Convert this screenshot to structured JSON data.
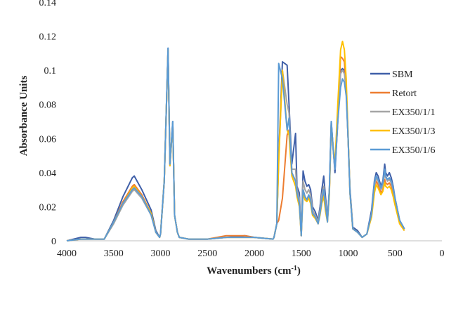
{
  "chart_data": {
    "type": "line",
    "title": "",
    "xlabel": "Wavenumbers (cm",
    "xlabel_sup": "-1",
    "xlabel_close": ")",
    "ylabel": "Absorbance Units",
    "xlim": [
      4000,
      0
    ],
    "ylim": [
      0,
      0.14
    ],
    "x_ticks": [
      4000,
      3500,
      3000,
      2500,
      2000,
      1500,
      1000,
      500,
      0
    ],
    "x_tick_labels": [
      "4000",
      "3500",
      "3000",
      "2500",
      "2000",
      "1500",
      "1000",
      "500",
      "0"
    ],
    "y_ticks": [
      0,
      0.02,
      0.04,
      0.06,
      0.08,
      0.1,
      0.12,
      0.14
    ],
    "y_tick_labels": [
      "0",
      "0.02",
      "0.04",
      "0.06",
      "0.08",
      "0.1",
      "0.12",
      "0.14"
    ],
    "grid": false,
    "legend_position": "right",
    "series": [
      {
        "name": "SBM",
        "color": "#3f5fa8",
        "x": [
          4000,
          3850,
          3800,
          3700,
          3600,
          3500,
          3400,
          3300,
          3280,
          3200,
          3100,
          3050,
          3010,
          3000,
          2960,
          2920,
          2900,
          2870,
          2850,
          2820,
          2800,
          2700,
          2500,
          2300,
          2100,
          2000,
          1800,
          1790,
          1760,
          1740,
          1700,
          1650,
          1630,
          1600,
          1560,
          1545,
          1520,
          1500,
          1480,
          1460,
          1440,
          1420,
          1400,
          1380,
          1350,
          1320,
          1300,
          1280,
          1260,
          1240,
          1220,
          1200,
          1180,
          1160,
          1140,
          1110,
          1080,
          1060,
          1040,
          1020,
          1000,
          980,
          950,
          900,
          850,
          800,
          750,
          720,
          700,
          680,
          650,
          630,
          610,
          600,
          580,
          560,
          540,
          520,
          500,
          450,
          400
        ],
        "y": [
          0,
          0.002,
          0.002,
          0.001,
          0.001,
          0.012,
          0.026,
          0.037,
          0.038,
          0.03,
          0.018,
          0.006,
          0.002,
          0.004,
          0.035,
          0.113,
          0.045,
          0.07,
          0.015,
          0.005,
          0.002,
          0.001,
          0.001,
          0.002,
          0.003,
          0.002,
          0.001,
          0.002,
          0.01,
          0.05,
          0.105,
          0.103,
          0.08,
          0.045,
          0.063,
          0.032,
          0.028,
          0.003,
          0.041,
          0.035,
          0.032,
          0.033,
          0.03,
          0.02,
          0.017,
          0.012,
          0.02,
          0.03,
          0.038,
          0.025,
          0.013,
          0.03,
          0.07,
          0.055,
          0.04,
          0.07,
          0.1,
          0.101,
          0.1,
          0.09,
          0.06,
          0.03,
          0.008,
          0.006,
          0.002,
          0.004,
          0.018,
          0.035,
          0.04,
          0.038,
          0.032,
          0.035,
          0.045,
          0.04,
          0.038,
          0.04,
          0.037,
          0.032,
          0.025,
          0.012,
          0.007
        ]
      },
      {
        "name": "Retort",
        "color": "#ed7d31",
        "x": [
          4000,
          3850,
          3800,
          3700,
          3600,
          3500,
          3400,
          3300,
          3280,
          3200,
          3100,
          3050,
          3010,
          3000,
          2960,
          2920,
          2900,
          2870,
          2850,
          2820,
          2800,
          2700,
          2500,
          2300,
          2100,
          2000,
          1800,
          1790,
          1760,
          1740,
          1700,
          1650,
          1630,
          1600,
          1560,
          1545,
          1520,
          1500,
          1480,
          1460,
          1440,
          1420,
          1400,
          1380,
          1350,
          1320,
          1300,
          1280,
          1260,
          1240,
          1220,
          1200,
          1180,
          1160,
          1140,
          1110,
          1080,
          1060,
          1040,
          1020,
          1000,
          980,
          950,
          900,
          850,
          800,
          750,
          720,
          700,
          680,
          650,
          630,
          610,
          600,
          580,
          560,
          540,
          520,
          500,
          450,
          400
        ],
        "y": [
          0,
          0.001,
          0.001,
          0.001,
          0.001,
          0.011,
          0.023,
          0.032,
          0.033,
          0.027,
          0.016,
          0.005,
          0.002,
          0.004,
          0.035,
          0.112,
          0.044,
          0.069,
          0.015,
          0.005,
          0.002,
          0.001,
          0.001,
          0.003,
          0.003,
          0.002,
          0.001,
          0.002,
          0.01,
          0.012,
          0.025,
          0.062,
          0.065,
          0.04,
          0.035,
          0.028,
          0.022,
          0.003,
          0.03,
          0.026,
          0.024,
          0.026,
          0.024,
          0.016,
          0.014,
          0.01,
          0.016,
          0.024,
          0.028,
          0.018,
          0.012,
          0.028,
          0.068,
          0.055,
          0.043,
          0.075,
          0.108,
          0.107,
          0.105,
          0.09,
          0.06,
          0.028,
          0.007,
          0.005,
          0.002,
          0.004,
          0.015,
          0.03,
          0.035,
          0.033,
          0.028,
          0.03,
          0.036,
          0.034,
          0.033,
          0.034,
          0.032,
          0.028,
          0.022,
          0.01,
          0.006
        ]
      },
      {
        "name": "EX350/1/1",
        "color": "#a5a5a5",
        "x": [
          4000,
          3850,
          3800,
          3700,
          3600,
          3500,
          3400,
          3300,
          3280,
          3200,
          3100,
          3050,
          3010,
          3000,
          2960,
          2920,
          2900,
          2870,
          2850,
          2820,
          2800,
          2700,
          2500,
          2300,
          2100,
          2000,
          1800,
          1790,
          1760,
          1740,
          1700,
          1650,
          1630,
          1600,
          1560,
          1545,
          1520,
          1500,
          1480,
          1460,
          1440,
          1420,
          1400,
          1380,
          1350,
          1320,
          1300,
          1280,
          1260,
          1240,
          1220,
          1200,
          1180,
          1160,
          1140,
          1110,
          1080,
          1060,
          1040,
          1020,
          1000,
          980,
          950,
          900,
          850,
          800,
          750,
          720,
          700,
          680,
          650,
          630,
          610,
          600,
          580,
          560,
          540,
          520,
          500,
          450,
          400
        ],
        "y": [
          0,
          0.001,
          0.001,
          0.001,
          0.001,
          0.01,
          0.021,
          0.029,
          0.03,
          0.025,
          0.015,
          0.005,
          0.002,
          0.004,
          0.035,
          0.112,
          0.044,
          0.069,
          0.015,
          0.005,
          0.002,
          0.001,
          0.001,
          0.002,
          0.002,
          0.002,
          0.001,
          0.002,
          0.01,
          0.048,
          0.1,
          0.08,
          0.075,
          0.042,
          0.042,
          0.03,
          0.025,
          0.003,
          0.035,
          0.03,
          0.028,
          0.03,
          0.027,
          0.018,
          0.015,
          0.011,
          0.018,
          0.027,
          0.032,
          0.022,
          0.012,
          0.029,
          0.068,
          0.054,
          0.042,
          0.072,
          0.098,
          0.1,
          0.098,
          0.088,
          0.06,
          0.028,
          0.007,
          0.005,
          0.002,
          0.004,
          0.016,
          0.032,
          0.037,
          0.035,
          0.03,
          0.032,
          0.04,
          0.037,
          0.035,
          0.036,
          0.034,
          0.03,
          0.024,
          0.011,
          0.006
        ]
      },
      {
        "name": "EX350/1/3",
        "color": "#ffc000",
        "x": [
          4000,
          3850,
          3800,
          3700,
          3600,
          3500,
          3400,
          3300,
          3280,
          3200,
          3100,
          3050,
          3010,
          3000,
          2960,
          2920,
          2900,
          2870,
          2850,
          2820,
          2800,
          2700,
          2500,
          2300,
          2100,
          2000,
          1800,
          1790,
          1760,
          1740,
          1700,
          1650,
          1630,
          1600,
          1560,
          1545,
          1520,
          1500,
          1480,
          1460,
          1440,
          1420,
          1400,
          1380,
          1350,
          1320,
          1300,
          1280,
          1260,
          1240,
          1220,
          1200,
          1180,
          1160,
          1140,
          1110,
          1080,
          1060,
          1040,
          1020,
          1000,
          980,
          950,
          900,
          850,
          800,
          750,
          720,
          700,
          680,
          650,
          630,
          610,
          600,
          580,
          560,
          540,
          520,
          500,
          450,
          400
        ],
        "y": [
          0,
          0.001,
          0.001,
          0.001,
          0.001,
          0.011,
          0.022,
          0.031,
          0.032,
          0.026,
          0.016,
          0.005,
          0.002,
          0.004,
          0.035,
          0.112,
          0.044,
          0.069,
          0.015,
          0.005,
          0.002,
          0.001,
          0.001,
          0.002,
          0.002,
          0.002,
          0.001,
          0.002,
          0.01,
          0.046,
          0.1,
          0.065,
          0.062,
          0.038,
          0.032,
          0.026,
          0.02,
          0.003,
          0.028,
          0.024,
          0.023,
          0.025,
          0.022,
          0.015,
          0.013,
          0.01,
          0.015,
          0.022,
          0.026,
          0.017,
          0.011,
          0.027,
          0.068,
          0.056,
          0.045,
          0.08,
          0.112,
          0.117,
          0.112,
          0.095,
          0.062,
          0.028,
          0.007,
          0.005,
          0.002,
          0.004,
          0.014,
          0.028,
          0.033,
          0.031,
          0.027,
          0.029,
          0.034,
          0.032,
          0.031,
          0.032,
          0.03,
          0.026,
          0.021,
          0.01,
          0.006
        ]
      },
      {
        "name": "EX350/1/6",
        "color": "#5b9bd5",
        "x": [
          4000,
          3850,
          3800,
          3700,
          3600,
          3500,
          3400,
          3300,
          3280,
          3200,
          3100,
          3050,
          3010,
          3000,
          2960,
          2920,
          2900,
          2870,
          2850,
          2820,
          2800,
          2700,
          2500,
          2300,
          2100,
          2000,
          1800,
          1790,
          1760,
          1740,
          1700,
          1650,
          1630,
          1600,
          1560,
          1545,
          1520,
          1500,
          1480,
          1460,
          1440,
          1420,
          1400,
          1380,
          1350,
          1320,
          1300,
          1280,
          1260,
          1240,
          1220,
          1200,
          1180,
          1160,
          1140,
          1110,
          1080,
          1060,
          1040,
          1020,
          1000,
          980,
          950,
          900,
          850,
          800,
          750,
          720,
          700,
          680,
          650,
          630,
          610,
          600,
          580,
          560,
          540,
          520,
          500,
          450,
          400
        ],
        "y": [
          0,
          0.001,
          0.001,
          0.001,
          0.001,
          0.011,
          0.022,
          0.03,
          0.031,
          0.026,
          0.015,
          0.005,
          0.002,
          0.004,
          0.035,
          0.113,
          0.045,
          0.07,
          0.015,
          0.005,
          0.002,
          0.001,
          0.001,
          0.002,
          0.002,
          0.002,
          0.001,
          0.002,
          0.01,
          0.104,
          0.095,
          0.065,
          0.072,
          0.04,
          0.035,
          0.028,
          0.022,
          0.003,
          0.03,
          0.026,
          0.024,
          0.027,
          0.024,
          0.016,
          0.014,
          0.01,
          0.016,
          0.024,
          0.03,
          0.02,
          0.011,
          0.03,
          0.07,
          0.055,
          0.042,
          0.07,
          0.09,
          0.095,
          0.093,
          0.085,
          0.06,
          0.028,
          0.007,
          0.005,
          0.002,
          0.004,
          0.016,
          0.034,
          0.038,
          0.036,
          0.031,
          0.034,
          0.042,
          0.038,
          0.036,
          0.037,
          0.035,
          0.031,
          0.025,
          0.012,
          0.007
        ]
      }
    ]
  }
}
